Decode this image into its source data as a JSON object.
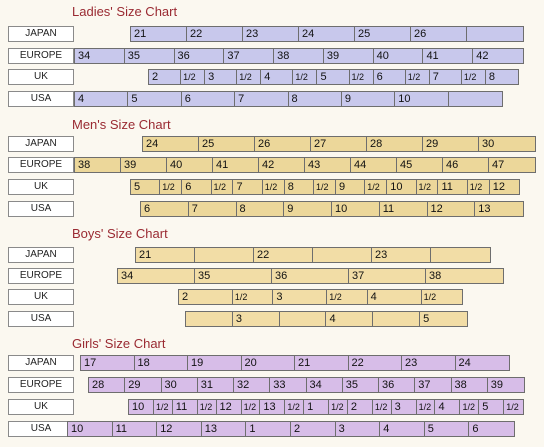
{
  "colors": {
    "ladies": "#c8c8ec",
    "men": "#ecd79a",
    "boys": "#f2dda6",
    "girls": "#d7bde8"
  },
  "sections": [
    {
      "key": "ladies",
      "title": "Ladies' Size Chart",
      "rows": [
        {
          "label": "JAPAN",
          "cells": [
            "21",
            "22",
            "23",
            "24",
            "25",
            "26",
            ""
          ]
        },
        {
          "label": "EUROPE",
          "cells": [
            "34",
            "35",
            "36",
            "37",
            "38",
            "39",
            "40",
            "41",
            "42"
          ]
        },
        {
          "label": "UK",
          "cells": [
            "2",
            "1/2",
            "3",
            "1/2",
            "4",
            "1/2",
            "5",
            "1/2",
            "6",
            "1/2",
            "7",
            "1/2",
            "8"
          ]
        },
        {
          "label": "USA",
          "cells": [
            "4",
            "5",
            "6",
            "7",
            "8",
            "9",
            "10",
            ""
          ]
        }
      ]
    },
    {
      "key": "men",
      "title": "Men's Size Chart",
      "rows": [
        {
          "label": "JAPAN",
          "cells": [
            "24",
            "25",
            "26",
            "27",
            "28",
            "29",
            "30"
          ]
        },
        {
          "label": "EUROPE",
          "cells": [
            "38",
            "39",
            "40",
            "41",
            "42",
            "43",
            "44",
            "45",
            "46",
            "47"
          ]
        },
        {
          "label": "UK",
          "cells": [
            "5",
            "1/2",
            "6",
            "1/2",
            "7",
            "1/2",
            "8",
            "1/2",
            "9",
            "1/2",
            "10",
            "1/2",
            "11",
            "1/2",
            "12"
          ]
        },
        {
          "label": "USA",
          "cells": [
            "6",
            "7",
            "8",
            "9",
            "10",
            "11",
            "12",
            "13"
          ]
        }
      ]
    },
    {
      "key": "boys",
      "title": "Boys' Size Chart",
      "rows": [
        {
          "label": "JAPAN",
          "cells": [
            "21",
            "",
            "22",
            "",
            "23",
            ""
          ]
        },
        {
          "label": "EUROPE",
          "cells": [
            "34",
            "35",
            "36",
            "37",
            "38"
          ]
        },
        {
          "label": "UK",
          "cells": [
            "2",
            "1/2",
            "3",
            "1/2",
            "4",
            "1/2"
          ]
        },
        {
          "label": "USA",
          "cells": [
            "",
            "3",
            "",
            "4",
            "",
            "5"
          ]
        }
      ]
    },
    {
      "key": "girls",
      "title": "Girls' Size Chart",
      "rows": [
        {
          "label": "JAPAN",
          "cells": [
            "17",
            "18",
            "19",
            "20",
            "21",
            "22",
            "23",
            "24"
          ]
        },
        {
          "label": "EUROPE",
          "cells": [
            "28",
            "29",
            "30",
            "31",
            "32",
            "33",
            "34",
            "35",
            "36",
            "37",
            "38",
            "39"
          ]
        },
        {
          "label": "UK",
          "cells": [
            "10",
            "1/2",
            "11",
            "1/2",
            "12",
            "1/2",
            "13",
            "1/2",
            "1",
            "1/2",
            "2",
            "1/2",
            "3",
            "1/2",
            "4",
            "1/2",
            "5",
            "1/2"
          ]
        },
        {
          "label": "USA",
          "cells": [
            "10",
            "11",
            "12",
            "13",
            "1",
            "2",
            "3",
            "4",
            "5",
            "6"
          ]
        }
      ]
    }
  ]
}
